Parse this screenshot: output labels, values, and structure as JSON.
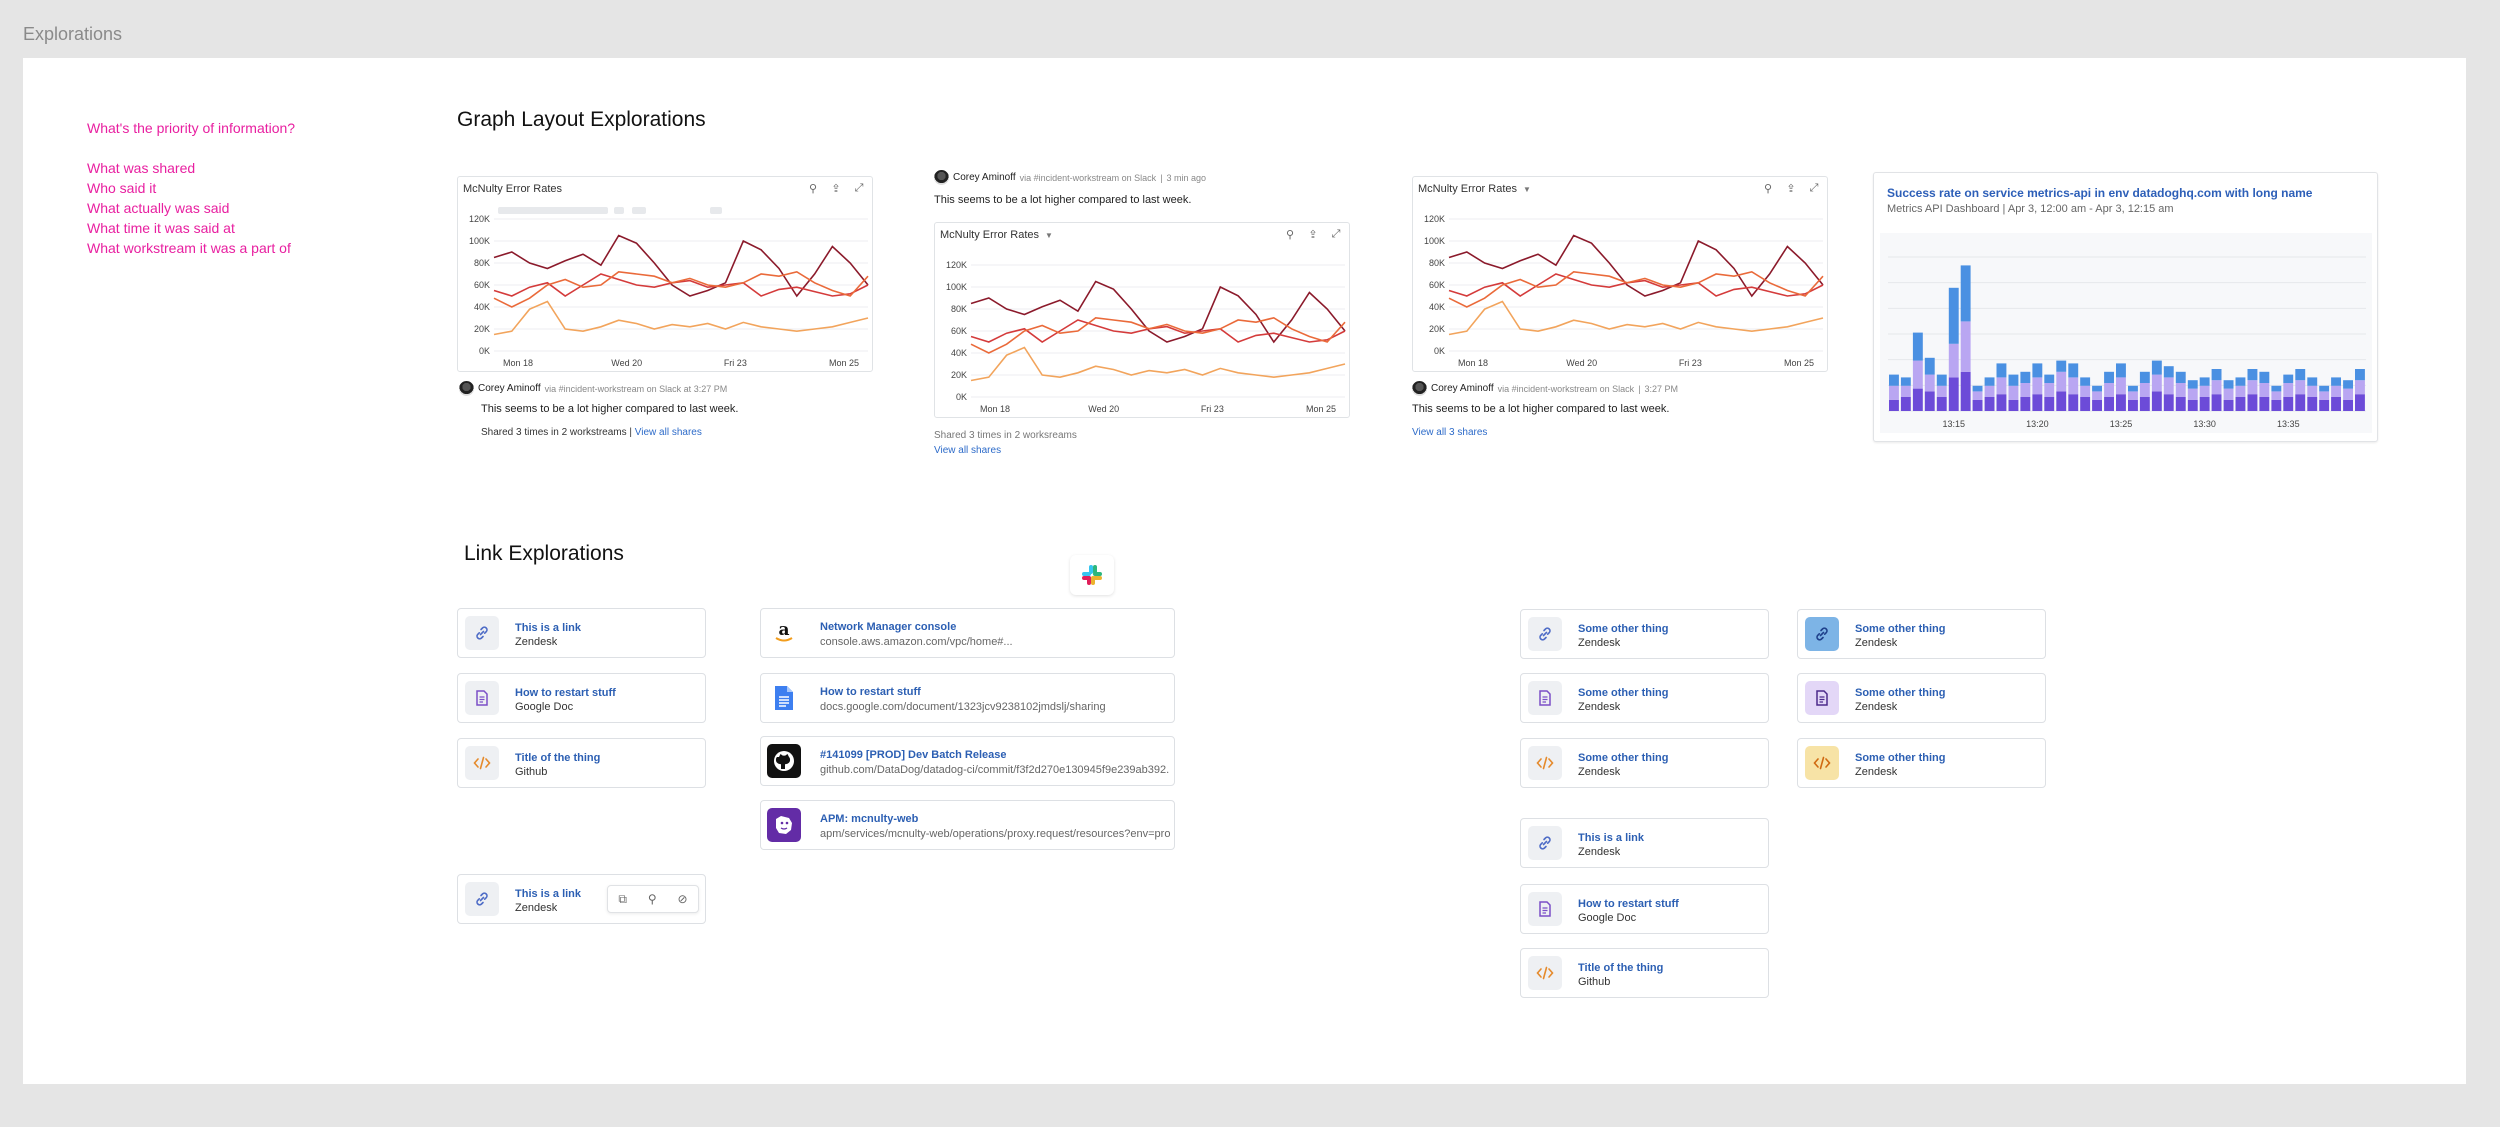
{
  "frame_label": "Explorations",
  "notes": {
    "question": "What's the priority of information?",
    "items": [
      "What was shared",
      "Who said it",
      "What actually was said",
      "What time it was said at",
      "What workstream it was a part of"
    ]
  },
  "graph_section_title": "Graph Layout Explorations",
  "link_section_title": "Link Explorations",
  "graph_cards": {
    "a": {
      "title": "McNulty Error Rates",
      "author": "Corey Aminoff",
      "via": "via #incident-workstream on Slack at 3:27 PM",
      "message": "This seems to be a lot higher compared to last week.",
      "shared": "Shared 3 times in 2 workstreams |",
      "shared_link": "View all shares"
    },
    "b": {
      "title": "McNulty Error Rates",
      "author": "Corey Aminoff",
      "via": "via #incident-workstream on Slack",
      "time": "3 min ago",
      "message": "This seems to be a lot higher compared to last week.",
      "shared": "Shared 3 times in 2 worksreams",
      "shared_link": "View all shares"
    },
    "c": {
      "title": "McNulty Error Rates",
      "author": "Corey Aminoff",
      "via": "via #incident-workstream on Slack",
      "time": "3:27 PM",
      "message": "This seems to be a lot higher compared to last week.",
      "shared_link": "View all 3 shares"
    }
  },
  "wide_card": {
    "title": "Success rate on service metrics-api in env datadoghq.com with long name",
    "subtitle": "Metrics API Dashboard  |  Apr 3, 12:00 am - Apr 3, 12:15 am"
  },
  "chart_data": [
    {
      "type": "line",
      "title": "McNulty Error Rates",
      "x_ticks": [
        "Mon 18",
        "Wed 20",
        "Fri 23",
        "Mon 25"
      ],
      "y_ticks": [
        "0K",
        "20K",
        "40K",
        "60K",
        "80K",
        "100K",
        "120K"
      ],
      "ylim": [
        0,
        120000
      ],
      "series_colors": [
        "#8b1a2b",
        "#d43b3b",
        "#ea6a3a",
        "#f2a45c"
      ],
      "series": [
        {
          "values": [
            85,
            90,
            80,
            75,
            82,
            88,
            78,
            105,
            98,
            80,
            60,
            50,
            55,
            62,
            100,
            92,
            75,
            50,
            70,
            95,
            80,
            60
          ]
        },
        {
          "values": [
            55,
            50,
            58,
            62,
            50,
            60,
            70,
            65,
            60,
            58,
            62,
            64,
            58,
            60,
            62,
            50,
            56,
            58,
            54,
            50,
            52,
            60
          ]
        },
        {
          "values": [
            48,
            40,
            48,
            60,
            65,
            58,
            60,
            72,
            70,
            68,
            62,
            66,
            60,
            58,
            62,
            70,
            68,
            72,
            62,
            55,
            50,
            68
          ]
        },
        {
          "values": [
            15,
            18,
            38,
            45,
            20,
            18,
            22,
            28,
            25,
            20,
            24,
            22,
            25,
            20,
            26,
            22,
            20,
            18,
            20,
            22,
            26,
            30
          ]
        }
      ]
    },
    {
      "type": "bar",
      "stacked": true,
      "x_ticks": [
        "13:15",
        "13:20",
        "13:25",
        "13:30",
        "13:35"
      ],
      "series_colors": [
        "#6c4bd8",
        "#b9a6f2",
        "#4a90e2"
      ],
      "series": [
        {
          "values": [
            4,
            5,
            8,
            7,
            5,
            12,
            14,
            4,
            5,
            6,
            4,
            5,
            6,
            5,
            7,
            6,
            5,
            4,
            5,
            6,
            4,
            5,
            7,
            6,
            5,
            4,
            5,
            6,
            4,
            5,
            6,
            5,
            4,
            5,
            6,
            5,
            4,
            5,
            4,
            6
          ]
        },
        {
          "values": [
            5,
            4,
            10,
            6,
            4,
            12,
            18,
            3,
            4,
            6,
            5,
            5,
            6,
            5,
            7,
            6,
            4,
            3,
            5,
            6,
            3,
            5,
            6,
            6,
            5,
            4,
            4,
            5,
            4,
            4,
            5,
            5,
            3,
            5,
            5,
            4,
            3,
            4,
            4,
            5
          ]
        },
        {
          "values": [
            4,
            3,
            10,
            6,
            4,
            20,
            20,
            2,
            3,
            5,
            4,
            4,
            5,
            3,
            4,
            5,
            3,
            2,
            4,
            5,
            2,
            4,
            5,
            4,
            4,
            3,
            3,
            4,
            3,
            3,
            4,
            4,
            2,
            3,
            4,
            3,
            2,
            3,
            3,
            4
          ]
        }
      ]
    }
  ],
  "links_left": [
    {
      "title": "This is a link",
      "subtitle": "Zendesk",
      "icon": "link-icon"
    },
    {
      "title": "How to restart stuff",
      "subtitle": "Google Doc",
      "icon": "document-icon"
    },
    {
      "title": "Title of the thing",
      "subtitle": "Github",
      "icon": "code-icon"
    },
    {
      "title": "This is a link",
      "subtitle": "Zendesk",
      "icon": "link-icon"
    }
  ],
  "links_mid": [
    {
      "title": "Network Manager console",
      "subtitle": "console.aws.amazon.com/vpc/home#...",
      "icon": "amazon-logo-icon"
    },
    {
      "title": "How to restart stuff",
      "subtitle": "docs.google.com/document/1323jcv9238102jmdslj/sharing",
      "icon": "google-docs-icon"
    },
    {
      "title": "#141099 [PROD] Dev Batch Release",
      "subtitle": "github.com/DataDog/datadog-ci/commit/f3f2d270e130945f9e239ab392...",
      "icon": "github-logo-icon"
    },
    {
      "title": "APM: mcnulty-web",
      "subtitle": "apm/services/mcnulty-web/operations/proxy.request/resources?env=pro...",
      "icon": "datadog-logo-icon"
    }
  ],
  "links_right_a": [
    {
      "title": "Some other thing",
      "subtitle": "Zendesk",
      "icon": "link-icon"
    },
    {
      "title": "Some other thing",
      "subtitle": "Zendesk",
      "icon": "document-icon"
    },
    {
      "title": "Some other thing",
      "subtitle": "Zendesk",
      "icon": "code-icon"
    },
    {
      "title": "This is a link",
      "subtitle": "Zendesk",
      "icon": "link-icon"
    },
    {
      "title": "How to restart stuff",
      "subtitle": "Google Doc",
      "icon": "document-icon"
    },
    {
      "title": "Title of the thing",
      "subtitle": "Github",
      "icon": "code-icon"
    }
  ],
  "links_right_b": [
    {
      "title": "Some other thing",
      "subtitle": "Zendesk",
      "icon": "link-icon"
    },
    {
      "title": "Some other thing",
      "subtitle": "Zendesk",
      "icon": "document-icon"
    },
    {
      "title": "Some other thing",
      "subtitle": "Zendesk",
      "icon": "code-icon"
    }
  ]
}
